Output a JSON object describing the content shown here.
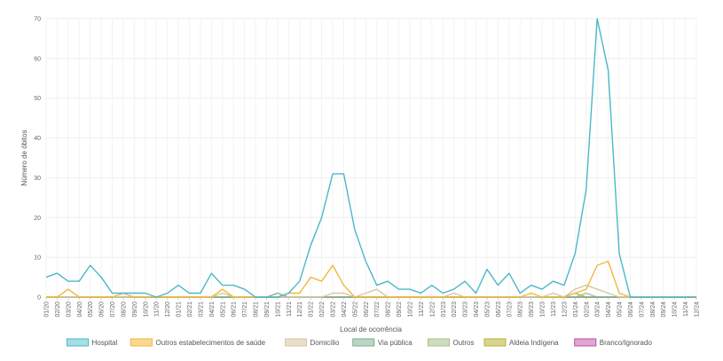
{
  "chart_data": {
    "type": "line",
    "xlabel": "Local de ocorrência",
    "ylabel": "Número de óbitos",
    "ylim": [
      0,
      70
    ],
    "yticks": [
      0,
      10,
      20,
      30,
      40,
      50,
      60,
      70
    ],
    "grid": true,
    "legend_position": "bottom",
    "categories": [
      "01/20",
      "02/20",
      "03/20",
      "04/20",
      "05/20",
      "06/20",
      "07/20",
      "08/20",
      "09/20",
      "10/20",
      "11/20",
      "12/20",
      "01/21",
      "02/21",
      "03/21",
      "04/21",
      "05/21",
      "06/21",
      "07/21",
      "08/21",
      "09/21",
      "10/21",
      "11/21",
      "12/21",
      "01/22",
      "02/22",
      "03/22",
      "04/22",
      "05/22",
      "06/22",
      "07/22",
      "08/22",
      "09/22",
      "10/22",
      "11/22",
      "12/22",
      "01/23",
      "02/23",
      "03/23",
      "04/23",
      "05/23",
      "06/23",
      "07/23",
      "08/23",
      "09/23",
      "10/23",
      "11/23",
      "12/23",
      "01/24",
      "02/24",
      "03/24",
      "04/24",
      "05/24",
      "06/24",
      "07/24",
      "08/24",
      "09/24",
      "10/24",
      "11/24",
      "12/24"
    ],
    "series": [
      {
        "name": "Hospital",
        "color": "#4bb8c9",
        "fill": "#a9dde6",
        "values": [
          5,
          6,
          4,
          4,
          8,
          5,
          1,
          1,
          1,
          1,
          0,
          1,
          3,
          1,
          1,
          6,
          3,
          3,
          2,
          0,
          0,
          0,
          1,
          4,
          13,
          20,
          31,
          31,
          17,
          9,
          3,
          4,
          2,
          2,
          1,
          3,
          1,
          2,
          4,
          1,
          7,
          3,
          6,
          1,
          3,
          2,
          4,
          3,
          11,
          27,
          70,
          57,
          11,
          0,
          0,
          0,
          0,
          0,
          0,
          0
        ]
      },
      {
        "name": "Outros estabelecimentos de saúde",
        "color": "#f2b73b",
        "fill": "#f8d98f",
        "values": [
          0,
          0,
          2,
          0,
          0,
          0,
          0,
          1,
          0,
          0,
          0,
          0,
          0,
          0,
          0,
          0,
          2,
          0,
          0,
          0,
          0,
          0,
          1,
          1,
          5,
          4,
          8,
          3,
          0,
          0,
          0,
          0,
          0,
          0,
          0,
          0,
          0,
          0,
          0,
          0,
          0,
          0,
          0,
          0,
          1,
          0,
          0,
          0,
          1,
          2,
          8,
          9,
          1,
          0,
          0,
          0,
          0,
          0,
          0,
          0
        ]
      },
      {
        "name": "Domicílio",
        "color": "#d6c7a6",
        "fill": "#e9dfc8",
        "values": [
          0,
          0,
          0,
          0,
          0,
          0,
          0,
          0,
          0,
          0,
          0,
          0,
          0,
          0,
          0,
          0,
          1,
          0,
          0,
          0,
          0,
          0,
          0,
          0,
          0,
          0,
          1,
          1,
          0,
          1,
          2,
          0,
          0,
          0,
          0,
          0,
          0,
          1,
          0,
          0,
          0,
          0,
          0,
          0,
          0,
          0,
          1,
          0,
          2,
          3,
          2,
          1,
          0,
          0,
          0,
          0,
          0,
          0,
          0,
          0
        ]
      },
      {
        "name": "Via pública",
        "color": "#7fae93",
        "fill": "#b9d7c4",
        "values": [
          0,
          0,
          0,
          0,
          0,
          0,
          0,
          0,
          0,
          0,
          0,
          0,
          0,
          0,
          0,
          0,
          0,
          0,
          0,
          0,
          0,
          1,
          0,
          0,
          0,
          0,
          0,
          0,
          0,
          0,
          0,
          0,
          0,
          0,
          0,
          0,
          0,
          0,
          0,
          0,
          0,
          0,
          0,
          0,
          0,
          0,
          0,
          0,
          0,
          0,
          0,
          0,
          0,
          0,
          0,
          0,
          0,
          0,
          0,
          0
        ]
      },
      {
        "name": "Outros",
        "color": "#a8bf8e",
        "fill": "#cfdcbd",
        "values": [
          0,
          0,
          0,
          0,
          0,
          0,
          0,
          0,
          0,
          0,
          0,
          0,
          0,
          0,
          0,
          0,
          0,
          0,
          0,
          0,
          0,
          0,
          0,
          0,
          0,
          0,
          0,
          0,
          0,
          0,
          0,
          0,
          0,
          0,
          0,
          0,
          0,
          0,
          0,
          0,
          0,
          0,
          0,
          0,
          0,
          0,
          0,
          0,
          0,
          1,
          0,
          0,
          0,
          0,
          0,
          0,
          0,
          0,
          0,
          0
        ]
      },
      {
        "name": "Aldeia Indígena",
        "color": "#b9b23a",
        "fill": "#d9d58e",
        "values": [
          0,
          0,
          0,
          0,
          0,
          0,
          0,
          0,
          0,
          0,
          0,
          0,
          0,
          0,
          0,
          0,
          0,
          0,
          0,
          0,
          0,
          0,
          0,
          0,
          0,
          0,
          0,
          0,
          0,
          0,
          0,
          0,
          0,
          0,
          0,
          0,
          0,
          0,
          0,
          0,
          0,
          0,
          0,
          0,
          0,
          0,
          0,
          0,
          1,
          0,
          0,
          0,
          0,
          0,
          0,
          0,
          0,
          0,
          0,
          0
        ]
      },
      {
        "name": "Branco/Ignorado",
        "color": "#b0569c",
        "fill": "#e1a6d3",
        "values": [
          0,
          0,
          0,
          0,
          0,
          0,
          0,
          0,
          0,
          0,
          0,
          0,
          0,
          0,
          0,
          0,
          0,
          0,
          0,
          0,
          0,
          0,
          0,
          0,
          0,
          0,
          0,
          0,
          0,
          0,
          0,
          0,
          0,
          0,
          0,
          0,
          0,
          0,
          0,
          0,
          0,
          0,
          0,
          0,
          0,
          0,
          0,
          0,
          0,
          0,
          0,
          0,
          0,
          0,
          0,
          0,
          0,
          0,
          0,
          0
        ]
      }
    ]
  }
}
